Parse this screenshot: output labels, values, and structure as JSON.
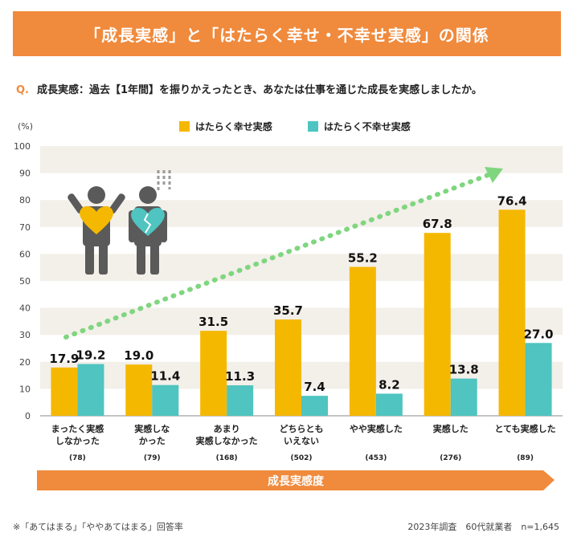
{
  "header": {
    "title": "「成長実感」と「はたらく幸せ・不幸せ実感」の関係"
  },
  "question": {
    "prefix": "Q.",
    "text": "成長実感：過去【1年間】を振りかえったとき、あなたは仕事を通じた成長を実感しましたか。"
  },
  "colors": {
    "happy": "#f5b800",
    "unhappy": "#4fc4c0",
    "accent": "#f08a3c",
    "trend": "#7fd67f",
    "band": "#f3efe9",
    "figure": "#5a5a5a"
  },
  "chart_data": {
    "type": "bar",
    "yunit": "(%)",
    "ylim": [
      0,
      100
    ],
    "yticks": [
      0,
      10,
      20,
      30,
      40,
      50,
      60,
      70,
      80,
      90,
      100
    ],
    "categories": [
      {
        "lines": [
          "まったく実感",
          "しなかった"
        ],
        "n": "(78)"
      },
      {
        "lines": [
          "実感しな",
          "かった"
        ],
        "n": "(79)"
      },
      {
        "lines": [
          "あまり",
          "実感しなかった"
        ],
        "n": "(168)"
      },
      {
        "lines": [
          "どちらとも",
          "いえない"
        ],
        "n": "(502)"
      },
      {
        "lines": [
          "やや実感した"
        ],
        "n": "(453)"
      },
      {
        "lines": [
          "実感した"
        ],
        "n": "(276)"
      },
      {
        "lines": [
          "とても実感した"
        ],
        "n": "(89)"
      }
    ],
    "series": [
      {
        "name": "はたらく幸せ実感",
        "values": [
          17.9,
          19.0,
          31.5,
          35.7,
          55.2,
          67.8,
          76.4
        ]
      },
      {
        "name": "はたらく不幸せ実感",
        "values": [
          19.2,
          11.4,
          11.3,
          7.4,
          8.2,
          13.8,
          27.0
        ]
      }
    ],
    "arrow_label": "成長実感度"
  },
  "footer": {
    "note": "※「あてはまる」「ややあてはまる」回答率",
    "source": "2023年調査　60代就業者　n=1,645"
  }
}
